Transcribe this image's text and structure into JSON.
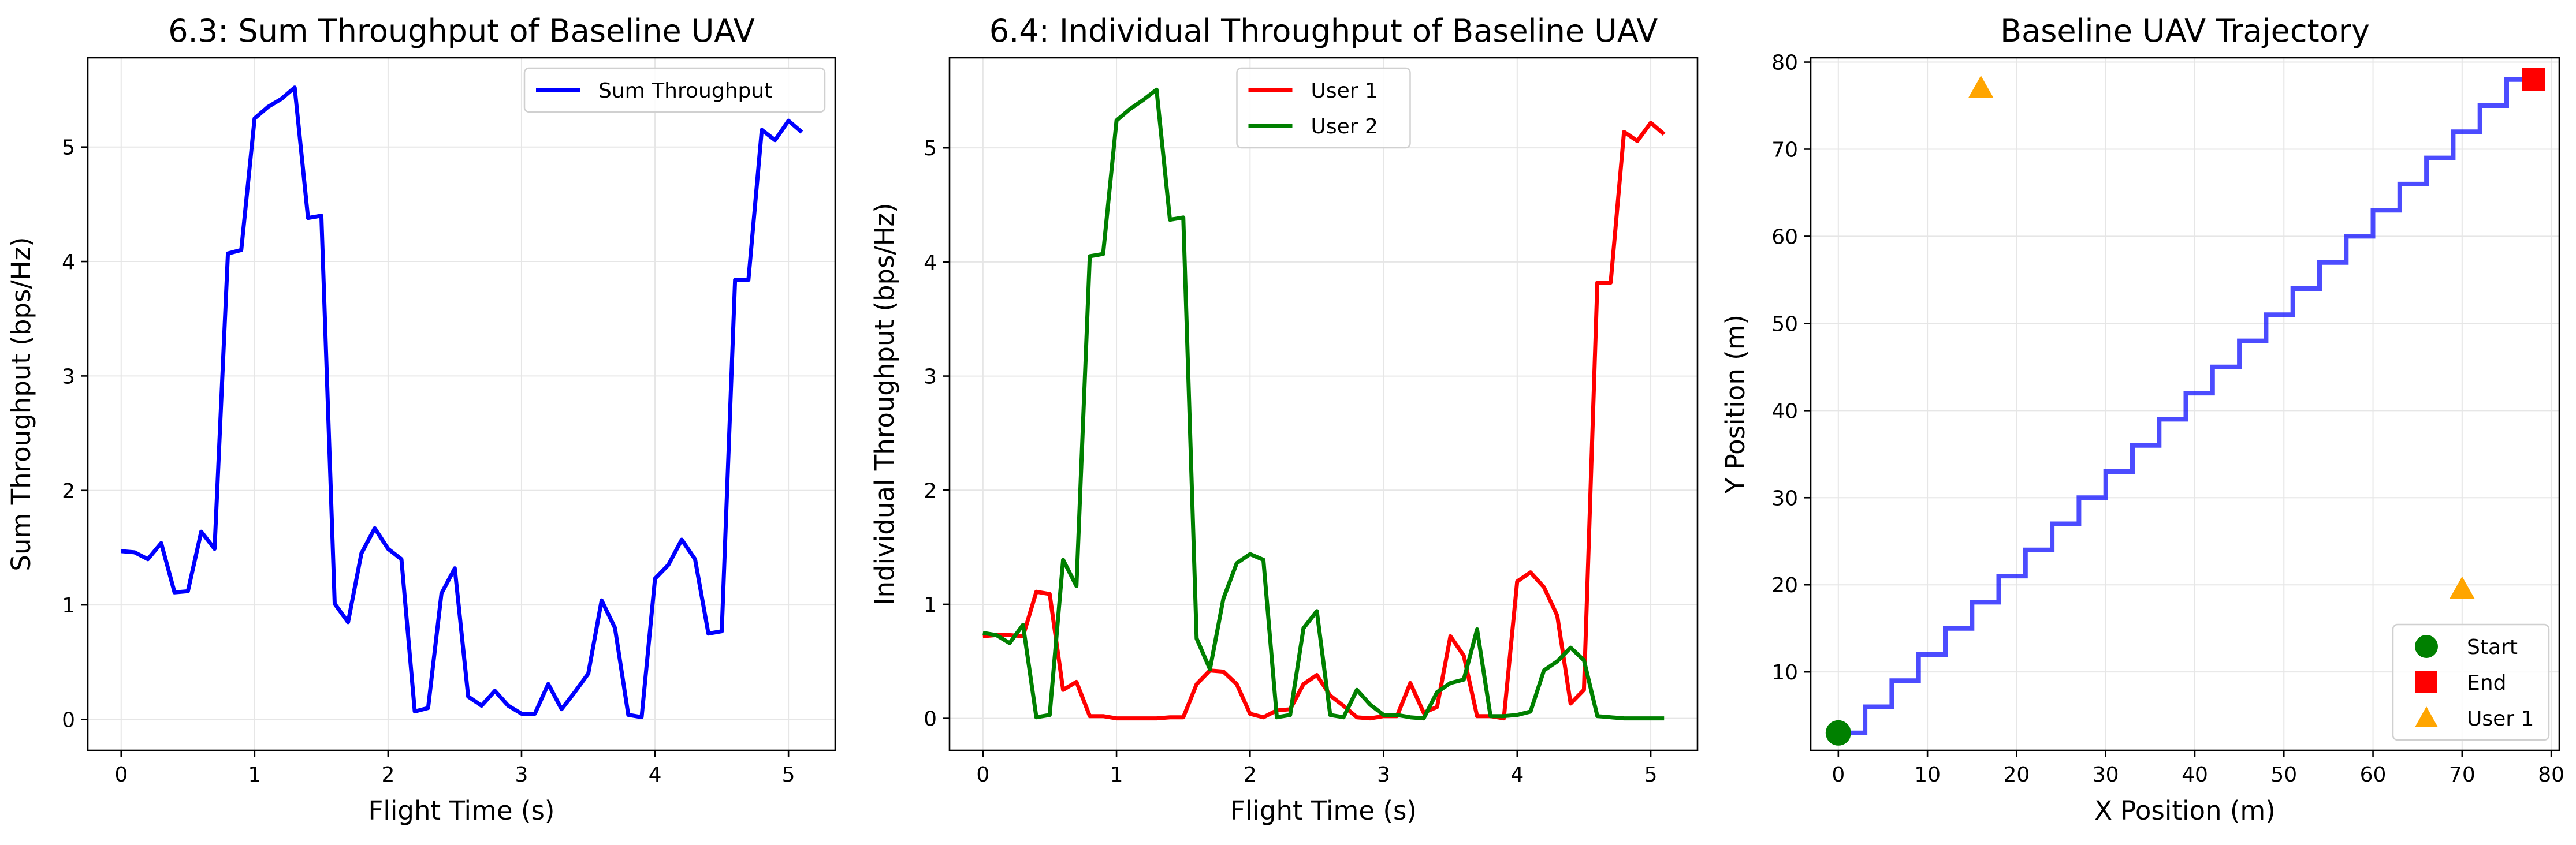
{
  "chart_data": [
    {
      "id": "sum",
      "type": "line",
      "title": "6.3: Sum Throughput of Baseline UAV",
      "xlabel": "Flight Time (s)",
      "ylabel": "Sum Throughput (bps/Hz)",
      "xlim": [
        -0.25,
        5.35
      ],
      "ylim": [
        -0.27,
        5.78
      ],
      "xticks": [
        0,
        1,
        2,
        3,
        4,
        5
      ],
      "yticks": [
        0,
        1,
        2,
        3,
        4,
        5
      ],
      "grid": true,
      "legend_position": "top-right",
      "series": [
        {
          "name": "Sum Throughput",
          "color": "#0000ff",
          "x": [
            0,
            0.1,
            0.2,
            0.3,
            0.4,
            0.5,
            0.6,
            0.7,
            0.8,
            0.9,
            1.0,
            1.1,
            1.2,
            1.3,
            1.4,
            1.5,
            1.6,
            1.7,
            1.8,
            1.9,
            2.0,
            2.1,
            2.2,
            2.3,
            2.4,
            2.5,
            2.6,
            2.7,
            2.8,
            2.9,
            3.0,
            3.1,
            3.2,
            3.3,
            3.4,
            3.5,
            3.6,
            3.7,
            3.8,
            3.9,
            4.0,
            4.1,
            4.2,
            4.3,
            4.4,
            4.5,
            4.6,
            4.7,
            4.8,
            4.9,
            5.0,
            5.1
          ],
          "y": [
            1.47,
            1.46,
            1.4,
            1.54,
            1.11,
            1.12,
            1.64,
            1.49,
            4.07,
            4.1,
            5.25,
            5.35,
            5.42,
            5.52,
            4.38,
            4.4,
            1.01,
            0.85,
            1.45,
            1.67,
            1.49,
            1.4,
            0.07,
            0.1,
            1.1,
            1.32,
            0.2,
            0.12,
            0.25,
            0.12,
            0.05,
            0.05,
            0.31,
            0.09,
            0.24,
            0.4,
            1.04,
            0.8,
            0.04,
            0.02,
            1.23,
            1.35,
            1.57,
            1.4,
            0.75,
            0.77,
            3.84,
            3.84,
            5.15,
            5.06,
            5.23,
            5.13
          ]
        }
      ]
    },
    {
      "id": "individual",
      "type": "line",
      "title": "6.4: Individual Throughput of Baseline UAV",
      "xlabel": "Flight Time (s)",
      "ylabel": "Individual Throughput (bps/Hz)",
      "xlim": [
        -0.25,
        5.35
      ],
      "ylim": [
        -0.28,
        5.79
      ],
      "xticks": [
        0,
        1,
        2,
        3,
        4,
        5
      ],
      "yticks": [
        0,
        1,
        2,
        3,
        4,
        5
      ],
      "grid": true,
      "legend_position": "top-center",
      "series": [
        {
          "name": "User 1",
          "color": "#ff0000",
          "x": [
            0,
            0.1,
            0.2,
            0.3,
            0.4,
            0.5,
            0.6,
            0.7,
            0.8,
            0.9,
            1.0,
            1.1,
            1.2,
            1.3,
            1.4,
            1.5,
            1.6,
            1.7,
            1.8,
            1.9,
            2.0,
            2.1,
            2.2,
            2.3,
            2.4,
            2.5,
            2.6,
            2.7,
            2.8,
            2.9,
            3.0,
            3.1,
            3.2,
            3.3,
            3.4,
            3.5,
            3.6,
            3.7,
            3.8,
            3.9,
            4.0,
            4.1,
            4.2,
            4.3,
            4.4,
            4.5,
            4.6,
            4.7,
            4.8,
            4.9,
            5.0,
            5.1
          ],
          "y": [
            0.72,
            0.73,
            0.73,
            0.72,
            1.11,
            1.09,
            0.25,
            0.32,
            0.02,
            0.02,
            0.0,
            0.0,
            0.0,
            0.0,
            0.01,
            0.01,
            0.3,
            0.42,
            0.41,
            0.3,
            0.04,
            0.01,
            0.07,
            0.08,
            0.3,
            0.38,
            0.2,
            0.11,
            0.01,
            0.0,
            0.02,
            0.02,
            0.31,
            0.05,
            0.1,
            0.72,
            0.55,
            0.02,
            0.02,
            0.0,
            1.2,
            1.28,
            1.15,
            0.9,
            0.13,
            0.25,
            3.82,
            3.82,
            5.14,
            5.06,
            5.22,
            5.12
          ]
        },
        {
          "name": "User 2",
          "color": "#008000",
          "x": [
            0,
            0.1,
            0.2,
            0.3,
            0.4,
            0.5,
            0.6,
            0.7,
            0.8,
            0.9,
            1.0,
            1.1,
            1.2,
            1.3,
            1.4,
            1.5,
            1.6,
            1.7,
            1.8,
            1.9,
            2.0,
            2.1,
            2.2,
            2.3,
            2.4,
            2.5,
            2.6,
            2.7,
            2.8,
            2.9,
            3.0,
            3.1,
            3.2,
            3.3,
            3.4,
            3.5,
            3.6,
            3.7,
            3.8,
            3.9,
            4.0,
            4.1,
            4.2,
            4.3,
            4.4,
            4.5,
            4.6,
            4.7,
            4.8,
            4.9,
            5.0,
            5.1
          ],
          "y": [
            0.75,
            0.73,
            0.66,
            0.82,
            0.01,
            0.03,
            1.39,
            1.16,
            4.05,
            4.07,
            5.24,
            5.34,
            5.42,
            5.51,
            4.37,
            4.39,
            0.7,
            0.43,
            1.05,
            1.36,
            1.44,
            1.39,
            0.01,
            0.03,
            0.79,
            0.94,
            0.03,
            0.01,
            0.25,
            0.12,
            0.03,
            0.03,
            0.01,
            0.0,
            0.23,
            0.31,
            0.34,
            0.78,
            0.02,
            0.02,
            0.03,
            0.06,
            0.42,
            0.5,
            0.62,
            0.51,
            0.02,
            0.01,
            0.0,
            0.0,
            0.0,
            0.0
          ]
        }
      ]
    },
    {
      "id": "trajectory",
      "type": "line",
      "title": "Baseline UAV Trajectory",
      "xlabel": "X Position (m)",
      "ylabel": "Y Position (m)",
      "xlim": [
        -3.1,
        80.9
      ],
      "ylim": [
        1.0,
        80.5
      ],
      "xticks": [
        0,
        10,
        20,
        30,
        40,
        50,
        60,
        70,
        80
      ],
      "yticks": [
        10,
        20,
        30,
        40,
        50,
        60,
        70,
        80
      ],
      "grid": true,
      "legend_position": "bottom-right",
      "path": {
        "color": "#0000ff",
        "points": [
          [
            0,
            3
          ],
          [
            3,
            3
          ],
          [
            3,
            6
          ],
          [
            6,
            6
          ],
          [
            6,
            9
          ],
          [
            9,
            9
          ],
          [
            9,
            12
          ],
          [
            12,
            12
          ],
          [
            12,
            15
          ],
          [
            15,
            15
          ],
          [
            15,
            18
          ],
          [
            18,
            18
          ],
          [
            18,
            21
          ],
          [
            21,
            21
          ],
          [
            21,
            24
          ],
          [
            24,
            24
          ],
          [
            24,
            27
          ],
          [
            27,
            27
          ],
          [
            27,
            30
          ],
          [
            30,
            30
          ],
          [
            30,
            33
          ],
          [
            33,
            33
          ],
          [
            33,
            36
          ],
          [
            36,
            36
          ],
          [
            36,
            39
          ],
          [
            39,
            39
          ],
          [
            39,
            42
          ],
          [
            42,
            42
          ],
          [
            42,
            45
          ],
          [
            45,
            45
          ],
          [
            45,
            48
          ],
          [
            48,
            48
          ],
          [
            48,
            51
          ],
          [
            51,
            51
          ],
          [
            51,
            54
          ],
          [
            54,
            54
          ],
          [
            54,
            57
          ],
          [
            57,
            57
          ],
          [
            57,
            60
          ],
          [
            60,
            60
          ],
          [
            60,
            63
          ],
          [
            63,
            63
          ],
          [
            63,
            66
          ],
          [
            66,
            66
          ],
          [
            66,
            69
          ],
          [
            69,
            69
          ],
          [
            69,
            72
          ],
          [
            72,
            72
          ],
          [
            72,
            75
          ],
          [
            75,
            75
          ],
          [
            75,
            78
          ],
          [
            78,
            78
          ]
        ]
      },
      "markers": [
        {
          "name": "Start",
          "shape": "circle",
          "color": "#008000",
          "x": 0,
          "y": 3,
          "in_legend": true
        },
        {
          "name": "End",
          "shape": "square",
          "color": "#ff0000",
          "x": 78,
          "y": 78,
          "in_legend": true
        },
        {
          "name": "User 1",
          "shape": "triangle",
          "color": "#ffa500",
          "x": 16,
          "y": 77,
          "in_legend": true
        },
        {
          "name": "",
          "shape": "triangle",
          "color": "#ffa500",
          "x": 70,
          "y": 19.5,
          "in_legend": false
        }
      ]
    }
  ]
}
